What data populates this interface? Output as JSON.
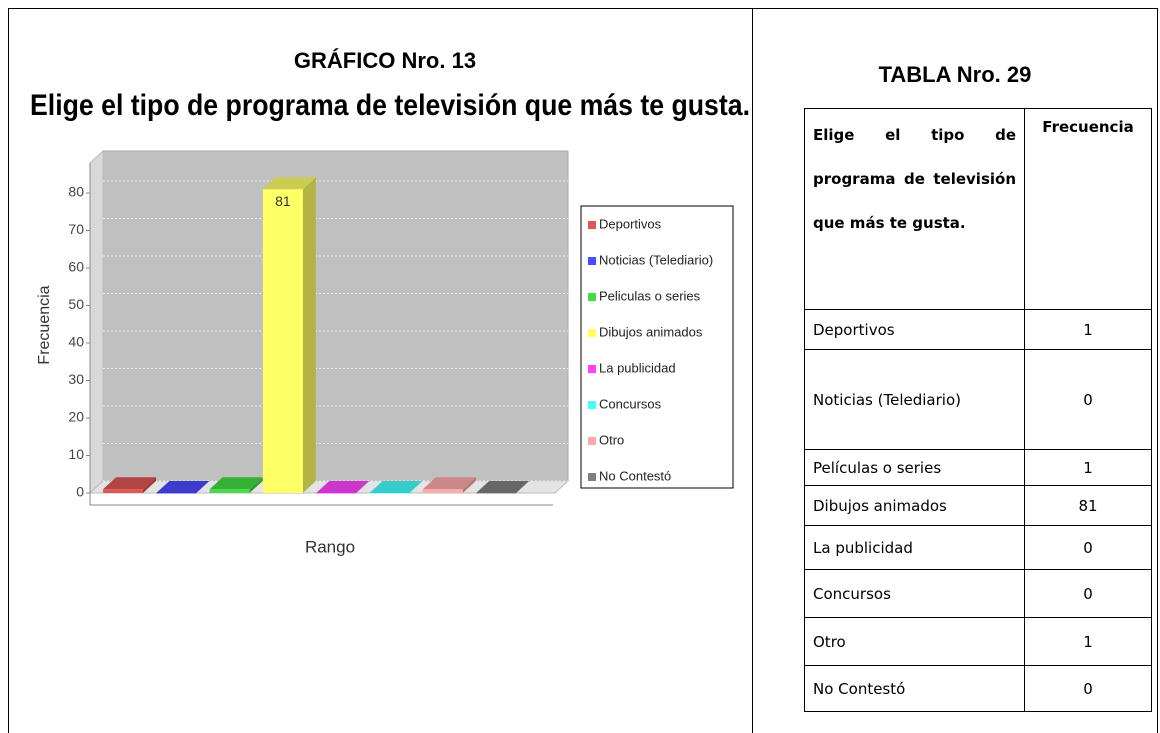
{
  "heading": "GRÁFICO Nro. 13",
  "chart_data": {
    "type": "bar3d",
    "title": "Elige el tipo de programa de televisión que más te gusta.",
    "xlabel": "Rango",
    "ylabel": "Frecuencia",
    "ylim": [
      0,
      88
    ],
    "yticks": [
      0,
      10,
      20,
      30,
      40,
      50,
      60,
      70,
      80
    ],
    "grid": true,
    "series": [
      {
        "name": "Deportivos",
        "color": "#e05555",
        "values": [
          1
        ]
      },
      {
        "name": "Noticias (Telediario)",
        "color": "#4a4aff",
        "values": [
          0
        ]
      },
      {
        "name": "Peliculas o series",
        "color": "#44dd44",
        "values": [
          1
        ]
      },
      {
        "name": "Dibujos animados",
        "color": "#ffff66",
        "values": [
          81
        ]
      },
      {
        "name": "La publicidad",
        "color": "#ff44ff",
        "values": [
          0
        ]
      },
      {
        "name": "Concursos",
        "color": "#44ffff",
        "values": [
          0
        ]
      },
      {
        "name": "Otro",
        "color": "#ffaaaa",
        "values": [
          1
        ]
      },
      {
        "name": "No Contestó",
        "color": "#808080",
        "values": [
          0
        ]
      }
    ],
    "value_label_series": 3
  },
  "table": {
    "title": "TABLA Nro. 29",
    "header": [
      "Elige el tipo de programa de televisión que más te gusta.",
      "Frecuencia"
    ],
    "rows": [
      [
        "Deportivos",
        1
      ],
      [
        "Noticias (Telediario)",
        0
      ],
      [
        "Películas o series",
        1
      ],
      [
        "Dibujos animados",
        81
      ],
      [
        "La publicidad",
        0
      ],
      [
        "Concursos",
        0
      ],
      [
        "Otro",
        1
      ],
      [
        "No Contestó",
        0
      ]
    ]
  }
}
